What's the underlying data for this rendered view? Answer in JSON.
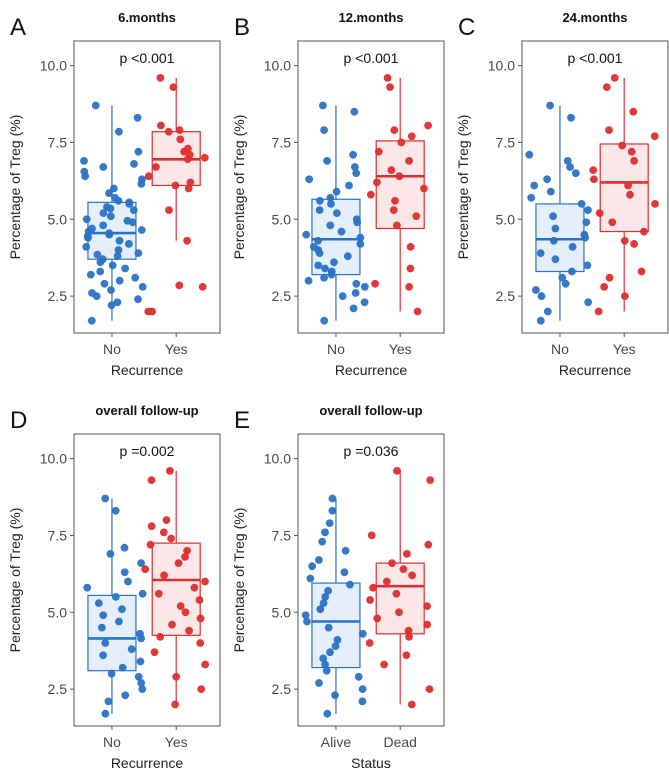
{
  "figure": {
    "description": "Multi-panel boxplot figure of Treg percentages"
  },
  "colors": {
    "no": "#2a72c4",
    "yes": "#dc2f2f",
    "no_fill": "#e4effb",
    "yes_fill": "#fbe6e8",
    "axis": "#404040"
  },
  "chart_data": [
    {
      "panel": "A",
      "type": "box",
      "title": "6.months",
      "pvalue": "p <0.001",
      "xlabel": "Recurrence",
      "ylabel": "Percentage of Treg (%)",
      "ylim": [
        1.3,
        10.8
      ],
      "yticks": [
        2.5,
        5.0,
        7.5,
        10.0
      ],
      "ytick_labels": [
        "2.5",
        "5.0",
        "7.5",
        "10.0"
      ],
      "categories": [
        "No",
        "Yes"
      ],
      "series": [
        {
          "name": "No",
          "q1": 3.7,
          "median": 4.55,
          "q3": 5.55,
          "whisker_low": 1.7,
          "whisker_high": 8.7,
          "points": [
            8.7,
            8.3,
            7.85,
            7.2,
            6.9,
            6.8,
            6.7,
            6.55,
            6.4,
            6.3,
            6.15,
            6.0,
            5.85,
            5.7,
            5.6,
            5.55,
            5.5,
            5.4,
            5.35,
            5.3,
            5.2,
            5.1,
            5.0,
            4.95,
            4.9,
            4.8,
            4.7,
            4.65,
            4.6,
            4.55,
            4.5,
            4.45,
            4.4,
            4.3,
            4.2,
            4.1,
            4.0,
            3.9,
            3.85,
            3.8,
            3.7,
            3.6,
            3.5,
            3.4,
            3.3,
            3.2,
            3.1,
            3.0,
            2.9,
            2.8,
            2.7,
            2.6,
            2.5,
            2.4,
            2.3,
            2.2,
            1.7
          ]
        },
        {
          "name": "Yes",
          "q1": 6.1,
          "median": 6.95,
          "q3": 7.85,
          "whisker_low": 4.3,
          "whisker_high": 9.6,
          "points": [
            9.6,
            9.3,
            8.05,
            7.9,
            7.85,
            7.6,
            7.3,
            7.2,
            7.1,
            7.0,
            6.95,
            6.7,
            6.4,
            6.2,
            6.1,
            6.0,
            5.3,
            4.3,
            2.85,
            2.8,
            2.0,
            2.0
          ]
        }
      ]
    },
    {
      "panel": "B",
      "type": "box",
      "title": "12.months",
      "pvalue": "p <0.001",
      "xlabel": "Recurrence",
      "ylabel": "Percentage of Treg (%)",
      "ylim": [
        1.3,
        10.8
      ],
      "yticks": [
        2.5,
        5.0,
        7.5,
        10.0
      ],
      "ytick_labels": [
        "2.5",
        "5.0",
        "7.5",
        "10.0"
      ],
      "categories": [
        "No",
        "Yes"
      ],
      "series": [
        {
          "name": "No",
          "q1": 3.2,
          "median": 4.35,
          "q3": 5.65,
          "whisker_low": 1.7,
          "whisker_high": 8.7,
          "points": [
            8.7,
            8.5,
            7.9,
            7.1,
            6.9,
            6.7,
            6.5,
            6.3,
            6.1,
            5.9,
            5.7,
            5.6,
            5.5,
            5.3,
            5.2,
            5.0,
            4.9,
            4.8,
            4.6,
            4.5,
            4.4,
            4.3,
            4.2,
            4.1,
            4.0,
            3.9,
            3.8,
            3.6,
            3.5,
            3.4,
            3.3,
            3.2,
            3.1,
            3.0,
            2.9,
            2.8,
            2.6,
            2.5,
            2.3,
            2.1,
            1.7
          ]
        },
        {
          "name": "Yes",
          "q1": 4.7,
          "median": 6.4,
          "q3": 7.55,
          "whisker_low": 2.0,
          "whisker_high": 9.6,
          "points": [
            9.6,
            9.3,
            8.05,
            7.9,
            7.7,
            7.5,
            7.2,
            6.9,
            6.6,
            6.4,
            6.2,
            6.0,
            5.8,
            5.6,
            5.3,
            5.1,
            4.8,
            4.1,
            3.4,
            2.9,
            2.8,
            2.0
          ]
        }
      ]
    },
    {
      "panel": "C",
      "type": "box",
      "title": "24.months",
      "pvalue": "p <0.001",
      "xlabel": "Recurrence",
      "ylabel": "Percentage of Treg (%)",
      "ylim": [
        1.3,
        10.8
      ],
      "yticks": [
        2.5,
        5.0,
        7.5,
        10.0
      ],
      "ytick_labels": [
        "2.5",
        "5.0",
        "7.5",
        "10.0"
      ],
      "categories": [
        "No",
        "Yes"
      ],
      "series": [
        {
          "name": "No",
          "q1": 3.3,
          "median": 4.35,
          "q3": 5.5,
          "whisker_low": 1.7,
          "whisker_high": 8.7,
          "points": [
            8.7,
            8.3,
            7.1,
            6.9,
            6.7,
            6.5,
            6.3,
            6.1,
            5.9,
            5.7,
            5.5,
            5.3,
            5.1,
            4.9,
            4.7,
            4.5,
            4.4,
            4.3,
            4.1,
            3.9,
            3.7,
            3.5,
            3.3,
            3.1,
            2.9,
            2.7,
            2.5,
            2.3,
            2.0,
            1.7
          ]
        },
        {
          "name": "Yes",
          "q1": 4.6,
          "median": 6.2,
          "q3": 7.45,
          "whisker_low": 2.0,
          "whisker_high": 9.6,
          "points": [
            9.6,
            9.3,
            8.5,
            7.9,
            7.7,
            7.4,
            7.2,
            6.9,
            6.6,
            6.3,
            6.1,
            5.8,
            5.5,
            5.2,
            4.9,
            4.6,
            4.3,
            4.2,
            3.3,
            3.1,
            2.8,
            2.5,
            2.0
          ]
        }
      ]
    },
    {
      "panel": "D",
      "type": "box",
      "title": "overall follow-up",
      "pvalue": "p =0.002",
      "xlabel": "Recurrence",
      "ylabel": "Percentage of Treg (%)",
      "ylim": [
        1.3,
        10.8
      ],
      "yticks": [
        2.5,
        5.0,
        7.5,
        10.0
      ],
      "ytick_labels": [
        "2.5",
        "5.0",
        "7.5",
        "10.0"
      ],
      "categories": [
        "No",
        "Yes"
      ],
      "series": [
        {
          "name": "No",
          "q1": 3.1,
          "median": 4.15,
          "q3": 5.55,
          "whisker_low": 1.7,
          "whisker_high": 8.7,
          "points": [
            8.7,
            8.3,
            7.1,
            6.9,
            6.6,
            6.3,
            6.0,
            5.8,
            5.6,
            5.5,
            5.3,
            5.1,
            4.9,
            4.7,
            4.5,
            4.3,
            4.15,
            4.0,
            3.8,
            3.6,
            3.4,
            3.2,
            3.0,
            2.9,
            2.7,
            2.5,
            2.3,
            2.1,
            1.7
          ]
        },
        {
          "name": "Yes",
          "q1": 4.25,
          "median": 6.05,
          "q3": 7.25,
          "whisker_low": 2.0,
          "whisker_high": 9.6,
          "points": [
            9.6,
            9.3,
            8.0,
            7.8,
            7.6,
            7.4,
            7.2,
            7.0,
            6.8,
            6.6,
            6.4,
            6.2,
            6.0,
            5.8,
            5.6,
            5.4,
            5.2,
            5.0,
            4.8,
            4.6,
            4.4,
            4.2,
            4.0,
            3.7,
            3.3,
            2.9,
            2.5,
            2.0
          ]
        }
      ]
    },
    {
      "panel": "E",
      "type": "box",
      "title": "overall follow-up",
      "pvalue": "p =0.036",
      "xlabel": "Status",
      "ylabel": "Percentage of Treg (%)",
      "ylim": [
        1.3,
        10.8
      ],
      "yticks": [
        2.5,
        5.0,
        7.5,
        10.0
      ],
      "ytick_labels": [
        "2.5",
        "5.0",
        "7.5",
        "10.0"
      ],
      "categories": [
        "Alive",
        "Dead"
      ],
      "series": [
        {
          "name": "Alive",
          "q1": 3.2,
          "median": 4.7,
          "q3": 5.95,
          "whisker_low": 1.7,
          "whisker_high": 8.7,
          "points": [
            8.7,
            8.3,
            7.9,
            7.6,
            7.3,
            7.0,
            6.7,
            6.5,
            6.3,
            6.1,
            5.9,
            5.7,
            5.5,
            5.3,
            5.1,
            4.9,
            4.7,
            4.5,
            4.3,
            4.1,
            3.9,
            3.7,
            3.5,
            3.3,
            3.1,
            2.9,
            2.7,
            2.5,
            2.3,
            2.1,
            1.7
          ]
        },
        {
          "name": "Dead",
          "q1": 4.3,
          "median": 5.85,
          "q3": 6.6,
          "whisker_low": 2.0,
          "whisker_high": 9.6,
          "points": [
            9.6,
            9.3,
            7.5,
            7.2,
            6.9,
            6.6,
            6.4,
            6.2,
            6.0,
            5.8,
            5.6,
            5.4,
            5.2,
            5.0,
            4.8,
            4.6,
            4.4,
            4.2,
            4.0,
            3.6,
            3.3,
            2.5,
            2.0
          ]
        }
      ]
    }
  ]
}
